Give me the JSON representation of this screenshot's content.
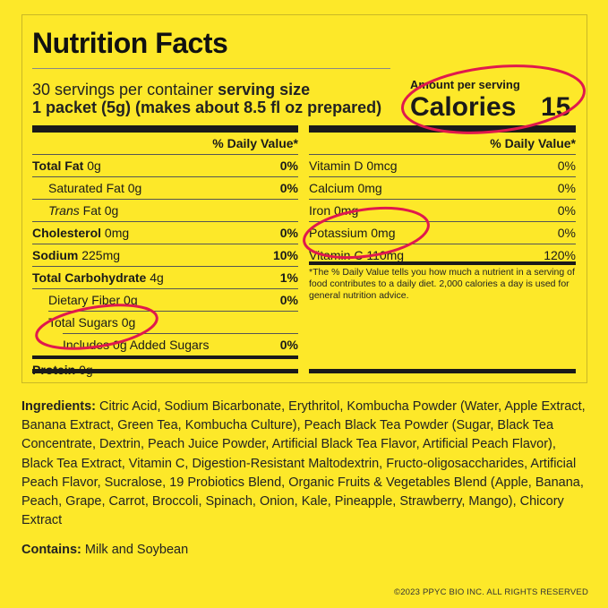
{
  "label": {
    "title": "Nutrition Facts",
    "servings_per_container": "30 servings per container",
    "serving_size_label": "serving size",
    "serving_size_value": "1 packet (5g) (makes about 8.5 fl oz prepared)",
    "amount_per_serving": "Amount per serving",
    "calories_label": "Calories",
    "calories_value": "15",
    "daily_value_header": "% Daily Value*"
  },
  "left_nutrients": [
    {
      "name": "Total Fat",
      "amount": "0g",
      "dv": "0%"
    },
    {
      "name": "Saturated Fat",
      "amount": "0g",
      "dv": "0%"
    },
    {
      "name": "Trans",
      "amount": "Fat 0g",
      "dv": ""
    },
    {
      "name": "Cholesterol",
      "amount": "0mg",
      "dv": "0%"
    },
    {
      "name": "Sodium",
      "amount": "225mg",
      "dv": "10%"
    },
    {
      "name": "Total Carbohydrate",
      "amount": "4g",
      "dv": "1%"
    },
    {
      "name": "Dietary Fiber",
      "amount": "0g",
      "dv": "0%"
    },
    {
      "name": "Total Sugars",
      "amount": "0g",
      "dv": ""
    },
    {
      "name": "Includes 0g Added Sugars",
      "amount": "",
      "dv": "0%"
    },
    {
      "name": "Protein",
      "amount": "0g",
      "dv": ""
    }
  ],
  "right_nutrients": [
    {
      "name": "Vitamin D 0mcg",
      "dv": "0%"
    },
    {
      "name": "Calcium 0mg",
      "dv": "0%"
    },
    {
      "name": "Iron 0mg",
      "dv": "0%"
    },
    {
      "name": "Potassium 0mg",
      "dv": "0%"
    },
    {
      "name": "Vitamin C 110mg",
      "dv": "120%"
    }
  ],
  "footnote": "*The % Daily Value tells you how much a nutrient in a serving of food contributes to a daily diet. 2,000 calories a day is used for general nutrition advice.",
  "ingredients_label": "Ingredients:",
  "ingredients_text": "Citric Acid, Sodium Bicarbonate, Erythritol, Kombucha Powder (Water, Apple Extract, Banana Extract, Green Tea, Kombucha Culture), Peach Black Tea Powder (Sugar, Black Tea Concentrate, Dextrin, Peach Juice Powder, Artificial Black Tea Flavor, Artificial Peach Flavor), Black Tea Extract, Vitamin C, Digestion-Resistant Maltodextrin, Fructo-oligosaccharides, Artificial Peach Flavor, Sucralose, 19 Probiotics Blend, Organic Fruits & Vegetables Blend (Apple, Banana, Peach, Grape, Carrot, Broccoli, Spinach, Onion, Kale, Pineapple, Strawberry, Mango), Chicory Extract",
  "contains_label": "Contains:",
  "contains_text": "Milk and Soybean",
  "copyright": "©2023 PPYC BIO INC. ALL RIGHTS RESERVED",
  "colors": {
    "background": "#fde829",
    "highlight_circle": "#e0194d",
    "text": "#1a1a1a"
  }
}
